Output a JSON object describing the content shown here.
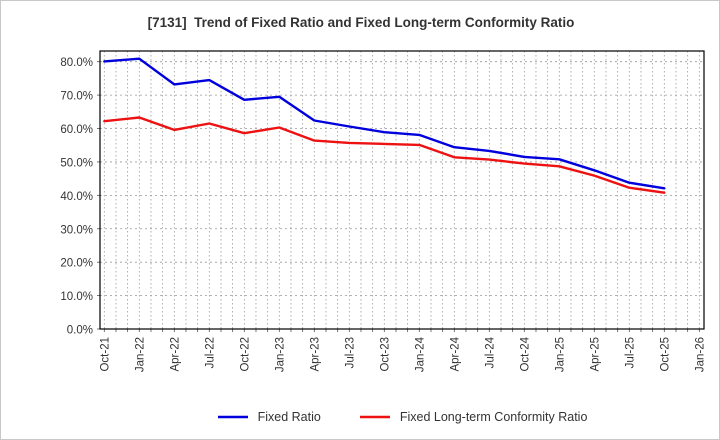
{
  "header": {
    "title": "[7131]  Trend of Fixed Ratio and Fixed Long-term Conformity Ratio"
  },
  "chart_data": {
    "type": "line",
    "title": "[7131]  Trend of Fixed Ratio and Fixed Long-term Conformity Ratio",
    "x_tick_labels": [
      "Oct-21",
      "Jan-22",
      "Apr-22",
      "Jul-22",
      "Oct-22",
      "Jan-23",
      "Apr-23",
      "Jul-23",
      "Oct-23",
      "Jan-24",
      "Apr-24",
      "Jul-24",
      "Oct-24",
      "Jan-25",
      "Apr-25",
      "Jul-25",
      "Oct-25",
      "Jan-26"
    ],
    "x": [
      "Oct-21",
      "Jan-22",
      "Apr-22",
      "Jul-22",
      "Oct-22",
      "Jan-23",
      "Apr-23",
      "Jul-23",
      "Oct-23",
      "Jan-24",
      "Apr-24",
      "Jul-24",
      "Oct-24",
      "Jan-25",
      "Apr-25",
      "Jul-25",
      "Oct-25"
    ],
    "series": [
      {
        "name": "Fixed Ratio",
        "color": "#0000dd",
        "values": [
          80.1,
          80.9,
          73.2,
          74.5,
          68.6,
          69.5,
          62.4,
          60.6,
          58.9,
          58.1,
          54.4,
          53.3,
          51.5,
          50.8,
          47.5,
          43.8,
          42.1
        ]
      },
      {
        "name": "Fixed Long-term Conformity Ratio",
        "color": "#ee1111",
        "values": [
          62.2,
          63.3,
          59.6,
          61.5,
          58.6,
          60.3,
          56.4,
          55.7,
          55.4,
          55.1,
          51.4,
          50.7,
          49.5,
          48.7,
          45.9,
          42.3,
          40.8
        ]
      }
    ],
    "ylim": [
      0,
      83.2
    ],
    "ytick_step": 10,
    "ytick_labels": [
      "0.0%",
      "10.0%",
      "20.0%",
      "30.0%",
      "40.0%",
      "50.0%",
      "60.0%",
      "70.0%",
      "80.0%"
    ],
    "grid": true,
    "minor_x_divisions_per_tick": 3,
    "legend_position": "bottom"
  },
  "colors": {
    "grid": "#999999",
    "axis_border": "#000000",
    "tick_text": "#333333",
    "background": "#ffffff"
  }
}
